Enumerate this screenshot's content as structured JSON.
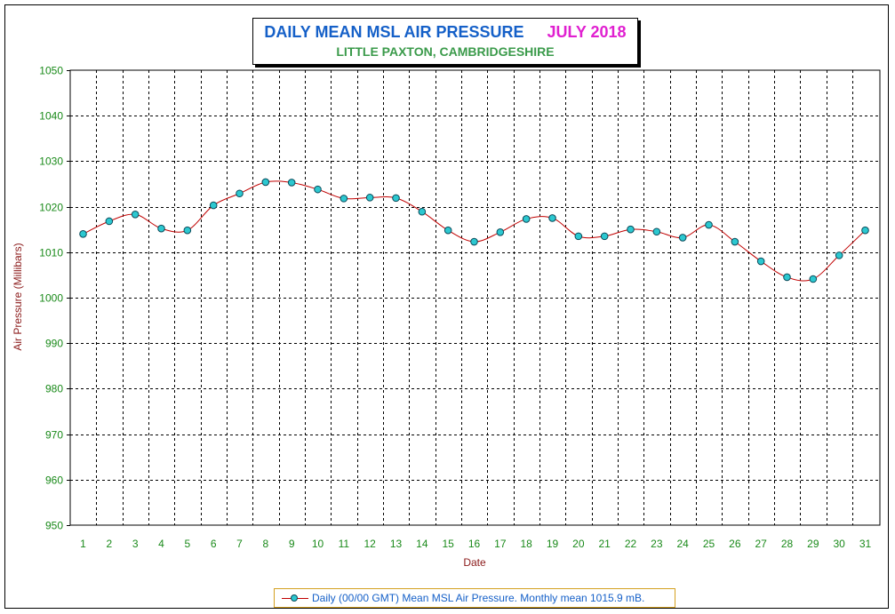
{
  "title": {
    "main": "DAILY MEAN MSL AIR PRESSURE",
    "month": "JULY 2018",
    "subtitle": "LITTLE PAXTON, CAMBRIDGESHIRE"
  },
  "legend": {
    "label": "Daily (00/00 GMT) Mean MSL Air Pressure. Monthly mean 1015.9 mB."
  },
  "colors": {
    "line": "#c00000",
    "marker_fill": "#2cc8d0",
    "marker_edge": "#0a4a5a",
    "tick_label": "#1a8a1a",
    "axis_label": "#8b1a1a",
    "grid": "#000000"
  },
  "chart_data": {
    "type": "line",
    "title": "DAILY MEAN MSL AIR PRESSURE",
    "xlabel": "Date",
    "ylabel": "Air Pressure (Millibars)",
    "x": [
      1,
      2,
      3,
      4,
      5,
      6,
      7,
      8,
      9,
      10,
      11,
      12,
      13,
      14,
      15,
      16,
      17,
      18,
      19,
      20,
      21,
      22,
      23,
      24,
      25,
      26,
      27,
      28,
      29,
      30,
      31
    ],
    "y_ticks": [
      950,
      960,
      970,
      980,
      990,
      1000,
      1010,
      1020,
      1030,
      1040,
      1050
    ],
    "ylim": [
      950,
      1050
    ],
    "grid": true,
    "legend_position": "bottom",
    "series": [
      {
        "name": "Daily (00/00 GMT) Mean MSL Air Pressure. Monthly mean 1015.9 mB.",
        "values": [
          1014.0,
          1016.8,
          1018.3,
          1015.2,
          1014.8,
          1020.3,
          1022.9,
          1025.4,
          1025.3,
          1023.8,
          1021.8,
          1022.0,
          1021.9,
          1018.9,
          1014.8,
          1012.3,
          1014.4,
          1017.3,
          1017.5,
          1013.5,
          1013.5,
          1015.0,
          1014.5,
          1013.2,
          1016.0,
          1012.3,
          1008.0,
          1004.5,
          1004.1,
          1009.3,
          1014.8
        ]
      }
    ]
  }
}
